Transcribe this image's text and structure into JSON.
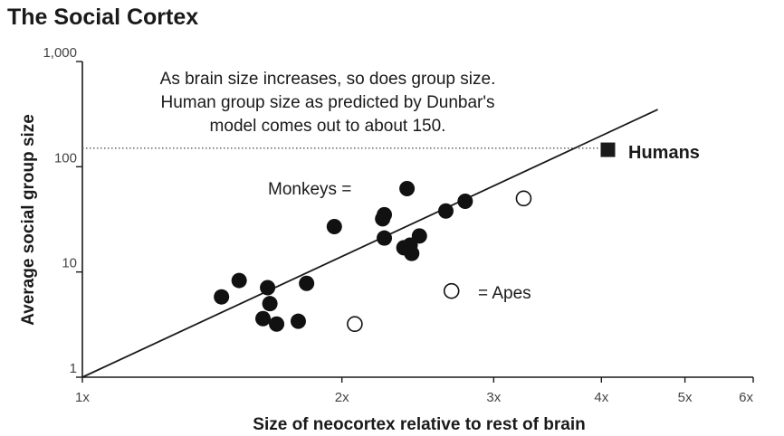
{
  "chart_data": {
    "type": "scatter",
    "title": "The Social Cortex",
    "xlabel": "Size of neocortex relative to rest of brain",
    "ylabel": "Average social group size",
    "x_scale": "log",
    "y_scale": "log",
    "xlim": [
      1,
      6
    ],
    "ylim": [
      1,
      1000
    ],
    "x_ticks": [
      {
        "value": 1,
        "label": "1x"
      },
      {
        "value": 2,
        "label": "2x"
      },
      {
        "value": 3,
        "label": "3x"
      },
      {
        "value": 4,
        "label": "4x"
      },
      {
        "value": 5,
        "label": "5x"
      },
      {
        "value": 6,
        "label": "6x"
      }
    ],
    "y_ticks": [
      {
        "value": 1,
        "label": "1"
      },
      {
        "value": 10,
        "label": "10"
      },
      {
        "value": 100,
        "label": "100"
      },
      {
        "value": 1000,
        "label": "1,000"
      }
    ],
    "grid": false,
    "annotation_lines": [
      "As brain size increases, so does group size.",
      "Human group size as predicted by Dunbar's",
      "model comes out to about 150."
    ],
    "reference_line": {
      "y": 150,
      "style": "dotted"
    },
    "trend_line": {
      "from": [
        1,
        1
      ],
      "to": [
        4.65,
        350
      ]
    },
    "series": [
      {
        "name": "Monkeys",
        "legend_text": "Monkeys =",
        "marker": "filled-circle",
        "color": "#111111",
        "points": [
          [
            1.45,
            5.8
          ],
          [
            1.52,
            8.3
          ],
          [
            1.62,
            3.6
          ],
          [
            1.64,
            7.1
          ],
          [
            1.65,
            5.0
          ],
          [
            1.68,
            3.2
          ],
          [
            1.78,
            3.4
          ],
          [
            1.82,
            7.8
          ],
          [
            1.96,
            27
          ],
          [
            2.23,
            32
          ],
          [
            2.24,
            35
          ],
          [
            2.24,
            21
          ],
          [
            2.36,
            17
          ],
          [
            2.38,
            62
          ],
          [
            2.4,
            18
          ],
          [
            2.41,
            15
          ],
          [
            2.46,
            22
          ],
          [
            2.64,
            38
          ],
          [
            2.78,
            47
          ]
        ]
      },
      {
        "name": "Apes",
        "legend_text": "= Apes",
        "marker": "open-circle",
        "color": "#111111",
        "points": [
          [
            2.07,
            3.2
          ],
          [
            2.68,
            6.6
          ],
          [
            3.25,
            50
          ]
        ]
      },
      {
        "name": "Humans",
        "legend_text": "Humans",
        "marker": "filled-square",
        "color": "#1a1a1a",
        "points": [
          [
            4.07,
            145
          ]
        ]
      }
    ]
  }
}
